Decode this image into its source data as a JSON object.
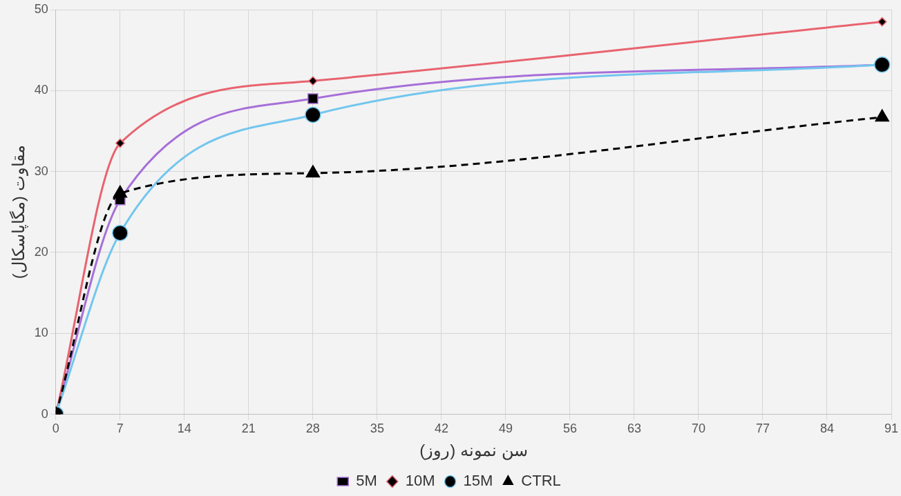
{
  "chart_data": {
    "type": "line",
    "xlabel": "سن نمونه (روز)",
    "ylabel": "مقاوت (مگاپاسکال)",
    "x": [
      0,
      7,
      28,
      90
    ],
    "series": [
      {
        "name": "5M",
        "color": "#a66fd8",
        "values": [
          0,
          26.5,
          39,
          43.2
        ],
        "marker": "square",
        "line_style": "solid"
      },
      {
        "name": "10M",
        "color": "#e8636f",
        "values": [
          0,
          33.5,
          41.2,
          48.5
        ],
        "marker": "diamond",
        "line_style": "solid"
      },
      {
        "name": "15M",
        "color": "#72c6ee",
        "values": [
          0,
          22.4,
          37,
          43.2
        ],
        "marker": "circle",
        "line_style": "solid"
      },
      {
        "name": "CTRL",
        "color": "#000000",
        "values": [
          0,
          27.3,
          29.8,
          36.7
        ],
        "marker": "triangle",
        "line_style": "dashed"
      }
    ],
    "xlim": [
      0,
      91
    ],
    "xticks": [
      0,
      7,
      14,
      21,
      28,
      35,
      42,
      49,
      56,
      63,
      70,
      77,
      84,
      91
    ],
    "ylim": [
      0,
      50
    ],
    "yticks": [
      0,
      10,
      20,
      30,
      40,
      50
    ],
    "grid": true,
    "legend": "bottom"
  }
}
